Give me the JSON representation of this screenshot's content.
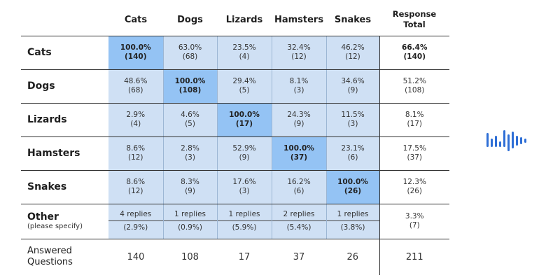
{
  "columns": [
    "Cats",
    "Dogs",
    "Lizards",
    "Hamsters",
    "Snakes"
  ],
  "total_header_line1": "Response",
  "total_header_line2": "Total",
  "rows": [
    {
      "label": "Cats",
      "cells": [
        {
          "pct": "100.0%",
          "n": "(140)"
        },
        {
          "pct": "63.0%",
          "n": "(68)"
        },
        {
          "pct": "23.5%",
          "n": "(4)"
        },
        {
          "pct": "32.4%",
          "n": "(12)"
        },
        {
          "pct": "46.2%",
          "n": "(12)"
        }
      ],
      "total": {
        "pct": "66.4%",
        "n": "(140)"
      }
    },
    {
      "label": "Dogs",
      "cells": [
        {
          "pct": "48.6%",
          "n": "(68)"
        },
        {
          "pct": "100.0%",
          "n": "(108)"
        },
        {
          "pct": "29.4%",
          "n": "(5)"
        },
        {
          "pct": "8.1%",
          "n": "(3)"
        },
        {
          "pct": "34.6%",
          "n": "(9)"
        }
      ],
      "total": {
        "pct": "51.2%",
        "n": "(108)"
      }
    },
    {
      "label": "Lizards",
      "cells": [
        {
          "pct": "2.9%",
          "n": "(4)"
        },
        {
          "pct": "4.6%",
          "n": "(5)"
        },
        {
          "pct": "100.0%",
          "n": "(17)"
        },
        {
          "pct": "24.3%",
          "n": "(9)"
        },
        {
          "pct": "11.5%",
          "n": "(3)"
        }
      ],
      "total": {
        "pct": "8.1%",
        "n": "(17)"
      }
    },
    {
      "label": "Hamsters",
      "cells": [
        {
          "pct": "8.6%",
          "n": "(12)"
        },
        {
          "pct": "2.8%",
          "n": "(3)"
        },
        {
          "pct": "52.9%",
          "n": "(9)"
        },
        {
          "pct": "100.0%",
          "n": "(37)"
        },
        {
          "pct": "23.1%",
          "n": "(6)"
        }
      ],
      "total": {
        "pct": "17.5%",
        "n": "(37)"
      }
    },
    {
      "label": "Snakes",
      "cells": [
        {
          "pct": "8.6%",
          "n": "(12)"
        },
        {
          "pct": "8.3%",
          "n": "(9)"
        },
        {
          "pct": "17.6%",
          "n": "(3)"
        },
        {
          "pct": "16.2%",
          "n": "(6)"
        },
        {
          "pct": "100.0%",
          "n": "(26)"
        }
      ],
      "total": {
        "pct": "12.3%",
        "n": "(26)"
      }
    }
  ],
  "other": {
    "label": "Other",
    "sublabel": "(please specify)",
    "cells": [
      {
        "link": "4 replies",
        "pct": "(2.9%)"
      },
      {
        "link": "1 replies",
        "pct": "(0.9%)"
      },
      {
        "link": "1 replies",
        "pct": "(5.9%)"
      },
      {
        "link": "2 replies",
        "pct": "(5.4%)"
      },
      {
        "link": "1 replies",
        "pct": "(3.8%)"
      }
    ],
    "total": {
      "pct": "3.3%",
      "n": "(7)"
    }
  },
  "answered": {
    "label_line1": "Answered",
    "label_line2": "Questions",
    "values": [
      "140",
      "108",
      "17",
      "37",
      "26"
    ],
    "total": "211"
  },
  "colors": {
    "cell": "#cfe0f4",
    "diagonal": "#94c3f4",
    "logo": "#2f6fd6"
  },
  "logo_icon": "soundwave-logo-icon"
}
